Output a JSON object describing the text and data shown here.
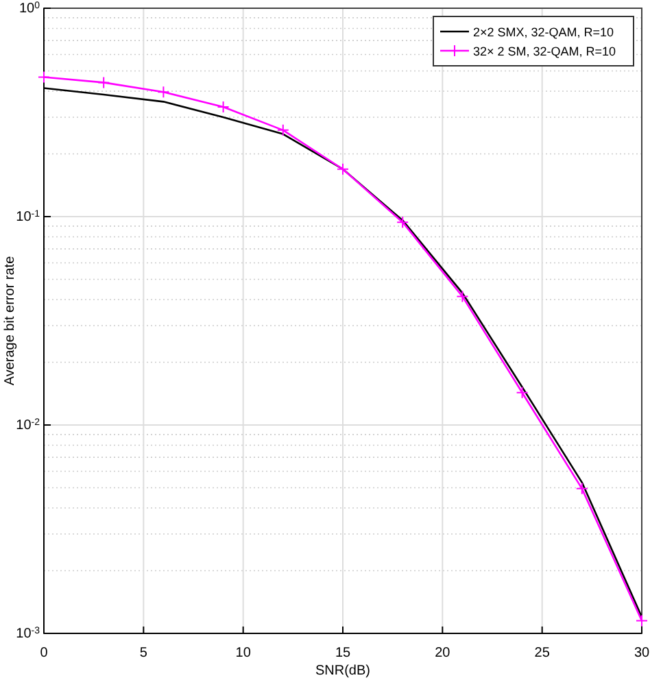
{
  "chart_data": {
    "type": "line",
    "xlabel": "SNR(dB)",
    "ylabel": "Average bit error rate",
    "x": [
      0,
      3,
      6,
      9,
      12,
      15,
      18,
      21,
      24,
      27,
      30
    ],
    "series": [
      {
        "name": "2×2 SMX, 32-QAM, R=10",
        "color": "#000000",
        "marker": "none",
        "values": [
          0.414,
          0.385,
          0.356,
          0.3,
          0.249,
          0.169,
          0.096,
          0.043,
          0.0152,
          0.0053,
          0.0012
        ]
      },
      {
        "name": "32× 2 SM, 32-QAM, R=10",
        "color": "#ff00ff",
        "marker": "cross",
        "values": [
          0.467,
          0.44,
          0.396,
          0.336,
          0.26,
          0.169,
          0.094,
          0.0414,
          0.0143,
          0.00495,
          0.00115
        ]
      }
    ],
    "xlim": [
      0,
      30
    ],
    "xticks": [
      0,
      5,
      10,
      15,
      20,
      25,
      30
    ],
    "log": true,
    "ylim": [
      0.001,
      1
    ],
    "yticks": [
      {
        "value": 0.001,
        "label": "10$^{-3}$"
      },
      {
        "value": 0.01,
        "label": "10$^{-2}$"
      },
      {
        "value": 0.1,
        "label": "10$^{-1}$"
      },
      {
        "value": 1,
        "label": "10$^{0}$"
      }
    ],
    "grid": true,
    "legend": "top right",
    "line_style": "solid"
  }
}
